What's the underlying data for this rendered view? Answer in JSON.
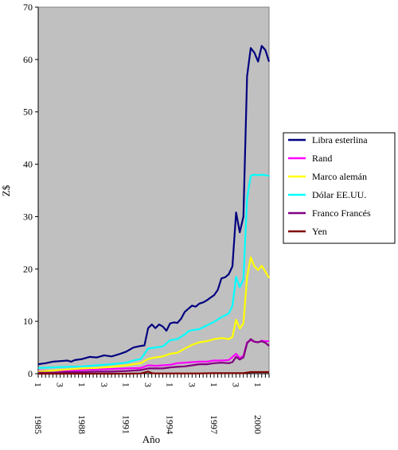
{
  "chart_data": {
    "type": "line",
    "title": "",
    "xlabel": "Año",
    "ylabel": "Z$",
    "ylim": [
      0,
      70
    ],
    "y_ticks": [
      0,
      10,
      20,
      30,
      40,
      50,
      60,
      70
    ],
    "grid": false,
    "legend_position": "right",
    "plot_background": "#c0c0c0",
    "x_start": 1985,
    "x_end": 2000,
    "quarter_tick_labels": [
      "1",
      "3",
      "1",
      "3",
      "1",
      "3",
      "1",
      "3",
      "1",
      "3",
      "1"
    ],
    "year_labels": [
      "1985",
      "1988",
      "1991",
      "1994",
      "1997",
      "2000"
    ],
    "series": [
      {
        "name": "Libra esterlina",
        "color": "#000080",
        "points": [
          [
            1985.0,
            1.8
          ],
          [
            1985.5,
            2.0
          ],
          [
            1986.0,
            2.3
          ],
          [
            1986.5,
            2.4
          ],
          [
            1987.0,
            2.5
          ],
          [
            1987.25,
            2.3
          ],
          [
            1987.5,
            2.6
          ],
          [
            1988.0,
            2.8
          ],
          [
            1988.5,
            3.2
          ],
          [
            1989.0,
            3.1
          ],
          [
            1989.5,
            3.5
          ],
          [
            1990.0,
            3.3
          ],
          [
            1990.5,
            3.7
          ],
          [
            1991.0,
            4.2
          ],
          [
            1991.5,
            5.0
          ],
          [
            1992.0,
            5.3
          ],
          [
            1992.25,
            5.4
          ],
          [
            1992.5,
            8.7
          ],
          [
            1992.75,
            9.4
          ],
          [
            1993.0,
            8.7
          ],
          [
            1993.25,
            9.4
          ],
          [
            1993.5,
            9.0
          ],
          [
            1993.75,
            8.2
          ],
          [
            1994.0,
            9.6
          ],
          [
            1994.25,
            9.8
          ],
          [
            1994.5,
            9.7
          ],
          [
            1994.75,
            10.5
          ],
          [
            1995.0,
            11.8
          ],
          [
            1995.25,
            12.4
          ],
          [
            1995.5,
            13.0
          ],
          [
            1995.75,
            12.8
          ],
          [
            1996.0,
            13.4
          ],
          [
            1996.25,
            13.6
          ],
          [
            1996.5,
            14.0
          ],
          [
            1996.75,
            14.5
          ],
          [
            1997.0,
            15.0
          ],
          [
            1997.25,
            16.0
          ],
          [
            1997.5,
            18.2
          ],
          [
            1997.75,
            18.4
          ],
          [
            1998.0,
            19.0
          ],
          [
            1998.25,
            20.5
          ],
          [
            1998.5,
            30.8
          ],
          [
            1998.75,
            27.0
          ],
          [
            1999.0,
            30.0
          ],
          [
            1999.25,
            56.8
          ],
          [
            1999.5,
            62.2
          ],
          [
            1999.75,
            61.3
          ],
          [
            2000.0,
            59.6
          ],
          [
            2000.25,
            62.6
          ],
          [
            2000.5,
            61.8
          ],
          [
            2000.75,
            59.6
          ]
        ]
      },
      {
        "name": "Rand",
        "color": "#ff00ff",
        "points": [
          [
            1985.0,
            0.5
          ],
          [
            1986.0,
            0.6
          ],
          [
            1987.0,
            0.6
          ],
          [
            1988.0,
            0.7
          ],
          [
            1989.0,
            0.8
          ],
          [
            1990.0,
            0.9
          ],
          [
            1991.0,
            1.0
          ],
          [
            1992.0,
            1.1
          ],
          [
            1992.5,
            1.6
          ],
          [
            1993.0,
            1.5
          ],
          [
            1993.5,
            1.6
          ],
          [
            1994.0,
            1.7
          ],
          [
            1994.5,
            2.0
          ],
          [
            1995.0,
            2.1
          ],
          [
            1995.5,
            2.2
          ],
          [
            1996.0,
            2.3
          ],
          [
            1996.5,
            2.3
          ],
          [
            1997.0,
            2.5
          ],
          [
            1997.5,
            2.5
          ],
          [
            1998.0,
            2.6
          ],
          [
            1998.5,
            3.8
          ],
          [
            1998.75,
            3.0
          ],
          [
            1999.0,
            3.4
          ],
          [
            1999.25,
            6.0
          ],
          [
            1999.5,
            6.4
          ],
          [
            1999.75,
            6.1
          ],
          [
            2000.0,
            6.0
          ],
          [
            2000.25,
            6.3
          ],
          [
            2000.5,
            6.2
          ],
          [
            2000.75,
            6.2
          ]
        ]
      },
      {
        "name": "Marco alemán",
        "color": "#ffff00",
        "points": [
          [
            1985.0,
            0.4
          ],
          [
            1986.0,
            0.6
          ],
          [
            1987.0,
            0.8
          ],
          [
            1988.0,
            1.0
          ],
          [
            1989.0,
            1.1
          ],
          [
            1990.0,
            1.3
          ],
          [
            1991.0,
            1.6
          ],
          [
            1992.0,
            2.0
          ],
          [
            1992.5,
            2.8
          ],
          [
            1993.0,
            3.1
          ],
          [
            1993.5,
            3.3
          ],
          [
            1994.0,
            3.8
          ],
          [
            1994.5,
            4.0
          ],
          [
            1995.0,
            4.8
          ],
          [
            1995.5,
            5.5
          ],
          [
            1996.0,
            6.0
          ],
          [
            1996.5,
            6.2
          ],
          [
            1997.0,
            6.6
          ],
          [
            1997.5,
            6.8
          ],
          [
            1998.0,
            6.6
          ],
          [
            1998.25,
            7.0
          ],
          [
            1998.5,
            10.3
          ],
          [
            1998.75,
            8.6
          ],
          [
            1999.0,
            9.6
          ],
          [
            1999.25,
            18.5
          ],
          [
            1999.5,
            22.2
          ],
          [
            1999.75,
            20.5
          ],
          [
            2000.0,
            19.8
          ],
          [
            2000.25,
            20.6
          ],
          [
            2000.5,
            19.5
          ],
          [
            2000.75,
            18.3
          ]
        ]
      },
      {
        "name": "Dólar EE.UU.",
        "color": "#00ffff",
        "points": [
          [
            1985.0,
            1.1
          ],
          [
            1986.0,
            1.2
          ],
          [
            1987.0,
            1.3
          ],
          [
            1988.0,
            1.4
          ],
          [
            1989.0,
            1.6
          ],
          [
            1990.0,
            1.8
          ],
          [
            1991.0,
            2.1
          ],
          [
            1991.5,
            2.5
          ],
          [
            1992.0,
            2.8
          ],
          [
            1992.5,
            4.8
          ],
          [
            1993.0,
            5.0
          ],
          [
            1993.5,
            5.2
          ],
          [
            1994.0,
            6.4
          ],
          [
            1994.5,
            6.6
          ],
          [
            1995.0,
            7.5
          ],
          [
            1995.25,
            8.1
          ],
          [
            1995.5,
            8.3
          ],
          [
            1996.0,
            8.5
          ],
          [
            1996.5,
            9.2
          ],
          [
            1997.0,
            9.9
          ],
          [
            1997.5,
            10.8
          ],
          [
            1998.0,
            11.5
          ],
          [
            1998.25,
            13.0
          ],
          [
            1998.5,
            18.5
          ],
          [
            1998.75,
            16.5
          ],
          [
            1999.0,
            18.0
          ],
          [
            1999.25,
            33.5
          ],
          [
            1999.5,
            37.8
          ],
          [
            1999.75,
            38.0
          ],
          [
            2000.0,
            37.9
          ],
          [
            2000.25,
            38.0
          ],
          [
            2000.5,
            37.9
          ],
          [
            2000.75,
            37.8
          ]
        ]
      },
      {
        "name": "Franco Francés",
        "color": "#800080",
        "points": [
          [
            1985.0,
            0.2
          ],
          [
            1986.0,
            0.2
          ],
          [
            1987.0,
            0.3
          ],
          [
            1988.0,
            0.3
          ],
          [
            1989.0,
            0.4
          ],
          [
            1990.0,
            0.4
          ],
          [
            1991.0,
            0.5
          ],
          [
            1992.0,
            0.7
          ],
          [
            1992.5,
            1.0
          ],
          [
            1993.0,
            1.0
          ],
          [
            1993.5,
            1.0
          ],
          [
            1994.0,
            1.2
          ],
          [
            1994.5,
            1.3
          ],
          [
            1995.0,
            1.4
          ],
          [
            1995.5,
            1.6
          ],
          [
            1996.0,
            1.8
          ],
          [
            1996.5,
            1.8
          ],
          [
            1997.0,
            2.0
          ],
          [
            1997.5,
            2.1
          ],
          [
            1998.0,
            2.0
          ],
          [
            1998.25,
            2.2
          ],
          [
            1998.5,
            3.2
          ],
          [
            1998.75,
            2.7
          ],
          [
            1999.0,
            3.1
          ],
          [
            1999.25,
            5.8
          ],
          [
            1999.5,
            6.6
          ],
          [
            1999.75,
            6.1
          ],
          [
            2000.0,
            6.0
          ],
          [
            2000.25,
            6.2
          ],
          [
            2000.5,
            5.9
          ],
          [
            2000.75,
            5.3
          ]
        ]
      },
      {
        "name": "Yen",
        "color": "#800000",
        "points": [
          [
            1985.0,
            0.0
          ],
          [
            1987.0,
            0.0
          ],
          [
            1989.0,
            0.0
          ],
          [
            1991.0,
            0.0
          ],
          [
            1992.0,
            0.05
          ],
          [
            1992.5,
            0.4
          ],
          [
            1992.75,
            0.1
          ],
          [
            1993.0,
            0.05
          ],
          [
            1994.0,
            0.05
          ],
          [
            1995.0,
            0.05
          ],
          [
            1996.0,
            0.05
          ],
          [
            1997.0,
            0.1
          ],
          [
            1998.0,
            0.1
          ],
          [
            1998.5,
            0.1
          ],
          [
            1999.0,
            0.1
          ],
          [
            1999.5,
            0.3
          ],
          [
            2000.0,
            0.3
          ],
          [
            2000.5,
            0.3
          ],
          [
            2000.75,
            0.3
          ]
        ]
      }
    ]
  }
}
